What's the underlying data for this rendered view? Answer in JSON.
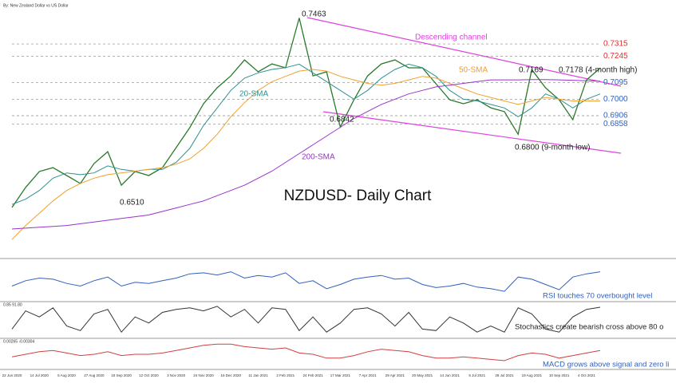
{
  "source": "By: New Zealand Dollar vs US Dollar",
  "chart_data": [
    {
      "type": "line",
      "title": "NZDUSD- Daily Chart",
      "categories": [
        "22 Jun 2020",
        null,
        "14 Jul 2020",
        null,
        "5 Aug 2020",
        null,
        "27 Aug 2020",
        null,
        "18 Sep 2020",
        null,
        "12 Oct 2020",
        null,
        "3 Nov 2020",
        null,
        "24 Nov 2020",
        null,
        "16 Dec 2020",
        null,
        "11 Jan 2021",
        null,
        "2 Feb 2021",
        null,
        "24 Feb 2021",
        null,
        "17 Mar 2021",
        null,
        "7 Apr 2021",
        null,
        "29 Apr 2021",
        null,
        "20 May 2021",
        null,
        "14 Jun 2021",
        null,
        "5 Jul 2021",
        null,
        "28 Jul 2021",
        null,
        "19 Aug 2021",
        null,
        "10 Sep 2021",
        null,
        "4 Oct 2021",
        null
      ],
      "ylim": [
        0.611,
        0.752
      ],
      "series": [
        {
          "color": "#2a7a2a",
          "values": [
            0.6383,
            0.6497,
            0.6588,
            0.661,
            0.6565,
            0.652,
            0.6633,
            0.6701,
            0.651,
            0.6588,
            0.6565,
            0.661,
            0.6724,
            0.6838,
            0.6974,
            0.7065,
            0.7133,
            0.7224,
            0.7156,
            0.7201,
            0.7179,
            0.7463,
            0.7133,
            0.7156,
            0.6842,
            0.6997,
            0.7133,
            0.7201,
            0.7224,
            0.7179,
            0.7179,
            0.7088,
            0.6997,
            0.6974,
            0.6997,
            0.6951,
            0.6929,
            0.68,
            0.7169,
            0.7065,
            0.6997,
            0.6883,
            0.711,
            0.7178
          ]
        },
        {
          "name": "20-SMA",
          "color": "#2f9090",
          "values": [
            0.64,
            0.643,
            0.648,
            0.655,
            0.658,
            0.657,
            0.658,
            0.662,
            0.66,
            0.659,
            0.66,
            0.66,
            0.664,
            0.672,
            0.685,
            0.695,
            0.705,
            0.712,
            0.715,
            0.717,
            0.718,
            0.72,
            0.715,
            0.71,
            0.705,
            0.7,
            0.705,
            0.712,
            0.717,
            0.72,
            0.718,
            0.713,
            0.705,
            0.7,
            0.699,
            0.697,
            0.695,
            0.69,
            0.695,
            0.703,
            0.7,
            0.695,
            0.7,
            0.703
          ]
        },
        {
          "name": "50-SMA",
          "color": "#f0a030",
          "values": [
            0.62,
            0.628,
            0.635,
            0.642,
            0.648,
            0.652,
            0.655,
            0.657,
            0.658,
            0.659,
            0.66,
            0.661,
            0.663,
            0.666,
            0.672,
            0.68,
            0.69,
            0.698,
            0.705,
            0.71,
            0.713,
            0.716,
            0.717,
            0.716,
            0.713,
            0.711,
            0.709,
            0.708,
            0.709,
            0.711,
            0.713,
            0.712,
            0.709,
            0.706,
            0.703,
            0.701,
            0.699,
            0.697,
            0.699,
            0.701,
            0.7,
            0.699,
            0.699,
            0.699
          ]
        },
        {
          "name": "200-SMA",
          "color": "#9933cc",
          "values": [
            0.626,
            0.6265,
            0.627,
            0.6275,
            0.628,
            0.629,
            0.63,
            0.631,
            0.632,
            0.633,
            0.634,
            0.636,
            0.638,
            0.64,
            0.642,
            0.645,
            0.648,
            0.651,
            0.655,
            0.659,
            0.664,
            0.669,
            0.674,
            0.679,
            0.684,
            0.689,
            0.693,
            0.697,
            0.7,
            0.703,
            0.705,
            0.707,
            0.708,
            0.709,
            0.71,
            0.711,
            0.711,
            0.711,
            0.7112,
            0.7112,
            0.711,
            0.7108,
            0.7105,
            0.7103
          ]
        }
      ],
      "resistance_color": "#e03030",
      "resistance_levels": [
        0.7315,
        0.7245
      ],
      "support_color": "#3060c0",
      "support_levels": [
        0.7095,
        {
          "value": 0.7,
          "label": "0.7000"
        },
        0.6906,
        0.6858
      ],
      "annotations": [
        "0.7463",
        "Descending channel",
        "0.7169",
        "0.7178 (4-month high)",
        "0.6842",
        "0.6800 (9-month low)",
        "0.6510"
      ]
    },
    {
      "type": "line",
      "title": "RSI touches 70 overbought level",
      "ylim": [
        20,
        85
      ],
      "series": [
        {
          "color": "#3060c0",
          "values": [
            45,
            55,
            60,
            58,
            50,
            45,
            55,
            62,
            45,
            52,
            50,
            55,
            60,
            68,
            70,
            66,
            72,
            60,
            65,
            62,
            70,
            50,
            55,
            40,
            48,
            58,
            62,
            65,
            58,
            60,
            48,
            42,
            45,
            50,
            43,
            40,
            35,
            62,
            58,
            48,
            38,
            62,
            68,
            72
          ]
        }
      ]
    },
    {
      "type": "line",
      "title": "Stochastics create bearish cross above 80 o",
      "subtitle": "0.85 91.80",
      "ylim": [
        0,
        100
      ],
      "series": [
        {
          "color": "#333333",
          "values": [
            20,
            80,
            60,
            90,
            30,
            15,
            70,
            85,
            10,
            60,
            40,
            75,
            85,
            90,
            80,
            95,
            60,
            85,
            40,
            90,
            85,
            15,
            60,
            10,
            40,
            85,
            90,
            70,
            30,
            75,
            20,
            15,
            60,
            40,
            10,
            30,
            10,
            90,
            70,
            20,
            10,
            60,
            85,
            92
          ]
        }
      ]
    },
    {
      "type": "line",
      "title": "MACD grows above signal and zero li",
      "subtitle": "0.00265 -0.00304",
      "ylim": [
        -0.01,
        0.01
      ],
      "series": [
        {
          "color": "#d04040",
          "values": [
            -0.002,
            0,
            0.002,
            0.003,
            0.001,
            -0.001,
            0,
            0.002,
            -0.001,
            0,
            0,
            0.001,
            0.003,
            0.005,
            0.007,
            0.008,
            0.008,
            0.006,
            0.005,
            0.004,
            0.005,
            0.001,
            0,
            -0.003,
            -0.003,
            -0.001,
            0.002,
            0.004,
            0.003,
            0.002,
            -0.001,
            -0.003,
            -0.003,
            -0.002,
            -0.003,
            -0.004,
            -0.005,
            -0.001,
            0.001,
            0,
            -0.003,
            -0.001,
            0.001,
            0.003
          ]
        }
      ]
    }
  ]
}
